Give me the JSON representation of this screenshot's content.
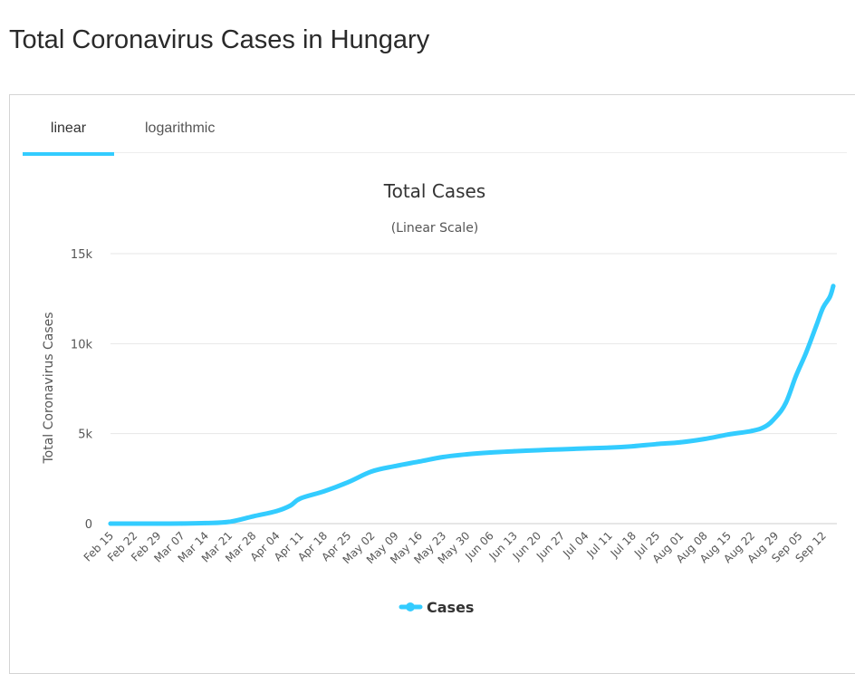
{
  "page": {
    "title": "Total Coronavirus Cases in Hungary"
  },
  "tabs": [
    {
      "label": "linear",
      "active": true
    },
    {
      "label": "logarithmic",
      "active": false
    }
  ],
  "colors": {
    "series": "#33ccff",
    "accent": "#33ccff",
    "grid": "#e6e6e6"
  },
  "chart_data": {
    "type": "line",
    "title": "Total Cases",
    "subtitle": "(Linear Scale)",
    "xlabel": "",
    "ylabel": "Total Coronavirus Cases",
    "ylim": [
      0,
      15000
    ],
    "yticks": [
      0,
      5000,
      10000,
      15000
    ],
    "ytick_labels": [
      "0",
      "5k",
      "10k",
      "15k"
    ],
    "grid": true,
    "legend": "bottom-center",
    "tick_labels": [
      "Feb 15",
      "Feb 22",
      "Feb 29",
      "Mar 07",
      "Mar 14",
      "Mar 21",
      "Mar 28",
      "Apr 04",
      "Apr 11",
      "Apr 18",
      "Apr 25",
      "May 02",
      "May 09",
      "May 16",
      "May 23",
      "May 30",
      "Jun 06",
      "Jun 13",
      "Jun 20",
      "Jun 27",
      "Jul 04",
      "Jul 11",
      "Jul 18",
      "Jul 25",
      "Aug 01",
      "Aug 08",
      "Aug 15",
      "Aug 22",
      "Aug 29",
      "Sep 05",
      "Sep 12"
    ],
    "x": [
      "Feb 15",
      "Feb 22",
      "Feb 29",
      "Mar 07",
      "Mar 14",
      "Mar 21",
      "Mar 28",
      "Apr 04",
      "Apr 08",
      "Apr 11",
      "Apr 18",
      "Apr 25",
      "May 02",
      "May 09",
      "May 16",
      "May 23",
      "May 30",
      "Jun 06",
      "Jun 13",
      "Jun 20",
      "Jun 27",
      "Jul 04",
      "Jul 11",
      "Jul 18",
      "Jul 25",
      "Aug 01",
      "Aug 08",
      "Aug 15",
      "Aug 22",
      "Aug 26",
      "Aug 29",
      "Sep 01",
      "Sep 04",
      "Sep 07",
      "Sep 10",
      "Sep 12",
      "Sep 14",
      "Sep 15"
    ],
    "series": [
      {
        "name": "Cases",
        "values": [
          0,
          0,
          0,
          5,
          30,
          100,
          400,
          700,
          1000,
          1400,
          1800,
          2300,
          2900,
          3200,
          3450,
          3700,
          3850,
          3950,
          4020,
          4080,
          4130,
          4180,
          4220,
          4300,
          4420,
          4520,
          4700,
          4950,
          5150,
          5400,
          5900,
          6700,
          8200,
          9500,
          11000,
          12000,
          12600,
          13200
        ]
      }
    ]
  }
}
